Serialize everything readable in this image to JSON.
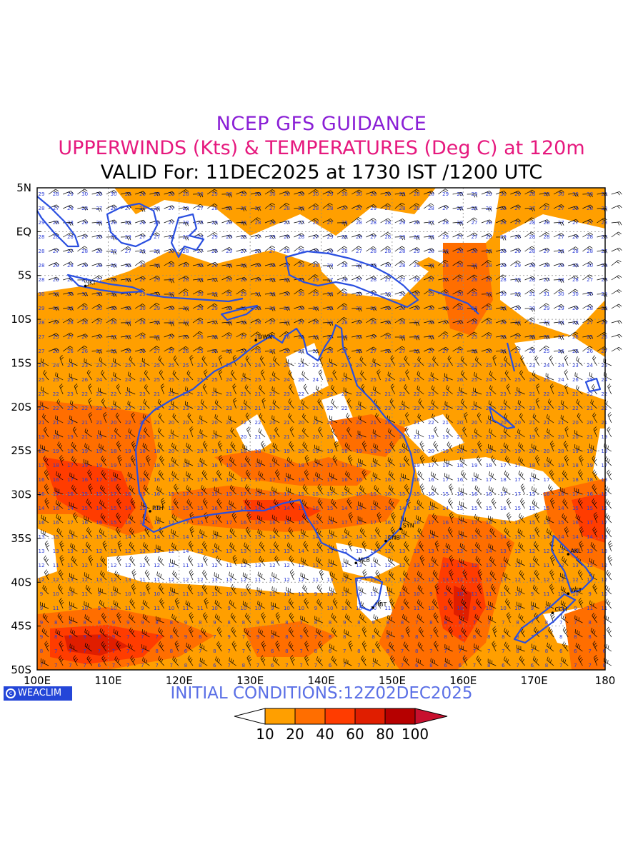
{
  "titles": {
    "line1": "NCEP GFS GUIDANCE",
    "line2": "UPPERWINDS (Kts) & TEMPERATURES (Deg C) at 120m",
    "line3": "VALID For: 11DEC2025 at 1730 IST /1200 UTC"
  },
  "map": {
    "lat_labels": [
      "5N",
      "EQ",
      "5S",
      "10S",
      "15S",
      "20S",
      "25S",
      "30S",
      "35S",
      "40S",
      "45S",
      "50S"
    ],
    "lon_labels": [
      "100E",
      "110E",
      "120E",
      "130E",
      "140E",
      "150E",
      "160E",
      "170E",
      "180"
    ],
    "lon_range": [
      100,
      180
    ],
    "lat_range": [
      -50,
      5
    ],
    "cities": [
      {
        "code": "JKT",
        "lon": 106.8,
        "lat": -6.2
      },
      {
        "code": "DWN",
        "lon": 130.8,
        "lat": -12.4
      },
      {
        "code": "PTH",
        "lon": 115.9,
        "lat": -31.9
      },
      {
        "code": "SYN",
        "lon": 151.2,
        "lat": -33.9
      },
      {
        "code": "CNB",
        "lon": 149.1,
        "lat": -35.3
      },
      {
        "code": "MLB",
        "lon": 144.9,
        "lat": -37.8
      },
      {
        "code": "HBT",
        "lon": 147.3,
        "lat": -42.9
      },
      {
        "code": "AKL",
        "lon": 174.8,
        "lat": -36.8
      },
      {
        "code": "WLT",
        "lon": 174.8,
        "lat": -41.3
      },
      {
        "code": "CCH",
        "lon": 172.6,
        "lat": -43.5
      }
    ],
    "colors": {
      "coast": "#2a4fe0",
      "temp_numbers": "#2a3bd8",
      "barbs": "#000000"
    }
  },
  "footer": {
    "logo_text": "WEACLIM",
    "initial_conditions": "INITIAL CONDITIONS:12Z02DEC2025"
  },
  "legend": {
    "labels": [
      "10",
      "20",
      "40",
      "60",
      "80",
      "100"
    ],
    "colors": [
      "#ffffff",
      "#ff9f00",
      "#ff6e00",
      "#ff3c00",
      "#e01e00",
      "#b60000",
      "#c8102e"
    ]
  }
}
